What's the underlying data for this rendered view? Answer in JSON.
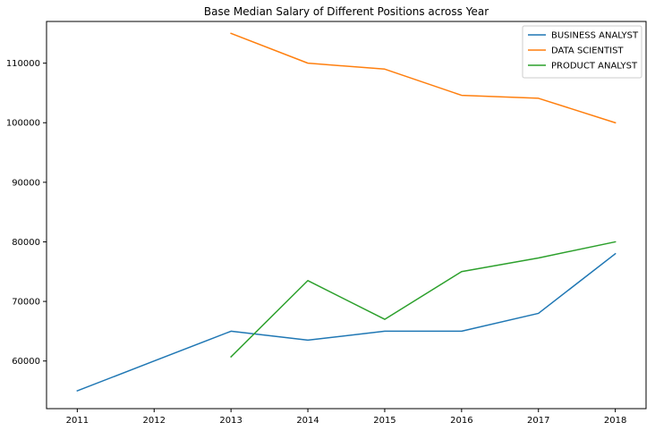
{
  "chart_data": {
    "type": "line",
    "title": "Base Median Salary of Different Positions across Year",
    "xlabel": "",
    "ylabel": "",
    "xlim": [
      2010.6,
      2018.4
    ],
    "ylim": [
      52000,
      117000
    ],
    "x_ticks": [
      2011,
      2012,
      2013,
      2014,
      2015,
      2016,
      2017,
      2018
    ],
    "x_tick_labels": [
      "2011",
      "2012",
      "2013",
      "2014",
      "2015",
      "2016",
      "2017",
      "2018"
    ],
    "y_ticks": [
      60000,
      70000,
      80000,
      90000,
      100000,
      110000
    ],
    "y_tick_labels": [
      "60000",
      "70000",
      "80000",
      "90000",
      "100000",
      "110000"
    ],
    "grid": false,
    "legend_position": "top-right",
    "series": [
      {
        "name": "BUSINESS ANALYST",
        "color": "#1f77b4",
        "x": [
          2011,
          2012,
          2013,
          2014,
          2015,
          2016,
          2017,
          2018
        ],
        "values": [
          55000,
          60000,
          65000,
          63500,
          65000,
          65000,
          68000,
          78000
        ]
      },
      {
        "name": "DATA SCIENTIST",
        "color": "#ff7f0e",
        "x": [
          2013,
          2014,
          2015,
          2016,
          2017,
          2018
        ],
        "values": [
          115000,
          110000,
          109000,
          104600,
          104100,
          100000
        ]
      },
      {
        "name": "PRODUCT ANALYST",
        "color": "#2ca02c",
        "x": [
          2013,
          2014,
          2015,
          2016,
          2017,
          2018
        ],
        "values": [
          60700,
          73500,
          67000,
          75000,
          77300,
          80000
        ]
      }
    ]
  }
}
